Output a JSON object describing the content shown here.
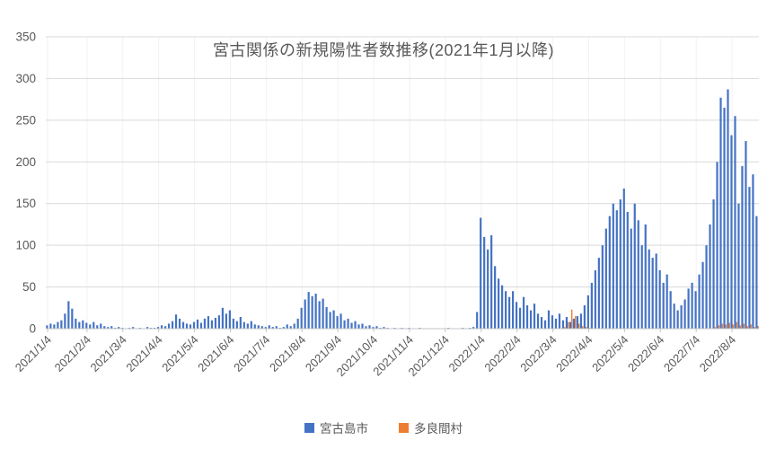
{
  "chart": {
    "title": "宮古関係の新規陽性者数推移(2021年1月以降)",
    "background": "#ffffff",
    "text_color": "#595959",
    "gridline_color": "#d9d9d9",
    "minor_vgrid_color": "#f2f2f2",
    "axis_color": "#c6c6c6"
  },
  "chart_data": {
    "type": "bar",
    "title": "宮古関係の新規陽性者数推移(2021年1月以降)",
    "xlabel": "",
    "ylabel": "",
    "ylim": [
      0,
      350
    ],
    "y_ticks": [
      0,
      50,
      100,
      150,
      200,
      250,
      300,
      350
    ],
    "grid": true,
    "legend_position": "bottom",
    "series": [
      {
        "name": "宮古島市",
        "color": "#4472C4"
      },
      {
        "name": "多良間村",
        "color": "#ED7D31"
      }
    ],
    "x_unit": "date, approx. every 3 days; tick placed on the 4th of each month",
    "months": [
      {
        "label": "2021/1/4",
        "miyako": [
          4,
          6,
          5,
          8,
          10,
          18,
          33,
          24,
          12,
          8
        ],
        "tarama": 10
      },
      {
        "label": "2021/2/4",
        "miyako": [
          10,
          7,
          5,
          8,
          4,
          6,
          3,
          2,
          3,
          1
        ],
        "tarama": 10
      },
      {
        "label": "2021/3/4",
        "miyako": [
          2,
          1,
          0,
          1,
          2,
          0,
          1,
          0,
          2,
          1
        ],
        "tarama": 10
      },
      {
        "label": "2021/4/4",
        "miyako": [
          1,
          2,
          4,
          3,
          6,
          9,
          17,
          12,
          8,
          6
        ],
        "tarama": 10
      },
      {
        "label": "2021/5/4",
        "miyako": [
          5,
          8,
          11,
          7,
          12,
          15,
          10,
          13,
          16,
          25
        ],
        "tarama": 10
      },
      {
        "label": "2021/6/4",
        "miyako": [
          18,
          22,
          12,
          9,
          14,
          8,
          6,
          9,
          5,
          4
        ],
        "tarama": 10
      },
      {
        "label": "2021/7/4",
        "miyako": [
          3,
          2,
          4,
          2,
          3,
          1,
          2,
          5,
          3,
          6
        ],
        "tarama": 10
      },
      {
        "label": "2021/8/4",
        "miyako": [
          12,
          25,
          35,
          44,
          39,
          42,
          33,
          36,
          26,
          20
        ],
        "tarama": 10
      },
      {
        "label": "2021/9/4",
        "miyako": [
          22,
          15,
          18,
          10,
          12,
          7,
          9,
          5,
          6,
          3
        ],
        "tarama": 10
      },
      {
        "label": "2021/10/4",
        "miyako": [
          4,
          2,
          3,
          1,
          2,
          1,
          0,
          1,
          0,
          1
        ],
        "tarama": 10
      },
      {
        "label": "2021/11/4",
        "miyako": [
          0,
          1,
          0,
          0,
          1,
          0,
          0,
          0,
          0,
          0
        ],
        "tarama": 10
      },
      {
        "label": "2021/12/4",
        "miyako": [
          0,
          0,
          1,
          0,
          0,
          0,
          1,
          0,
          1,
          2
        ],
        "tarama": 10
      },
      {
        "label": "2022/1/4",
        "miyako": [
          20,
          133,
          110,
          95,
          112,
          75,
          60,
          52,
          45,
          38
        ],
        "tarama": 10
      },
      {
        "label": "2022/2/4",
        "miyako": [
          45,
          32,
          25,
          38,
          28,
          22,
          30,
          18,
          14,
          10
        ],
        "tarama": 10
      },
      {
        "label": "2022/3/4",
        "miyako": [
          22,
          16,
          12,
          18,
          10,
          14,
          8,
          12,
          15,
          18
        ],
        "tarama": [
          0,
          0,
          0,
          0,
          2,
          8,
          23,
          15,
          6,
          3
        ]
      },
      {
        "label": "2022/4/4",
        "miyako": [
          28,
          40,
          55,
          70,
          85,
          100,
          120,
          135,
          150,
          142
        ],
        "tarama": [
          2,
          1,
          0,
          0,
          0,
          0,
          0,
          0,
          0,
          0
        ]
      },
      {
        "label": "2022/5/4",
        "miyako": [
          155,
          168,
          140,
          120,
          150,
          130,
          100,
          125,
          95,
          85
        ],
        "tarama": 10
      },
      {
        "label": "2022/6/4",
        "miyako": [
          90,
          70,
          55,
          65,
          45,
          30,
          22,
          28,
          35,
          48
        ],
        "tarama": 10
      },
      {
        "label": "2022/7/4",
        "miyako": [
          55,
          45,
          65,
          80,
          100,
          125,
          155,
          200,
          277,
          265
        ],
        "tarama": [
          0,
          0,
          0,
          0,
          0,
          0,
          2,
          4,
          6,
          5
        ]
      },
      {
        "label": "2022/8/4",
        "miyako": [
          287,
          232,
          255,
          150,
          195,
          225,
          170,
          185,
          135
        ],
        "tarama": [
          7,
          5,
          8,
          4,
          6,
          3,
          5,
          2,
          3
        ]
      }
    ]
  },
  "legend": {
    "items": [
      "宮古島市",
      "多良間村"
    ]
  }
}
